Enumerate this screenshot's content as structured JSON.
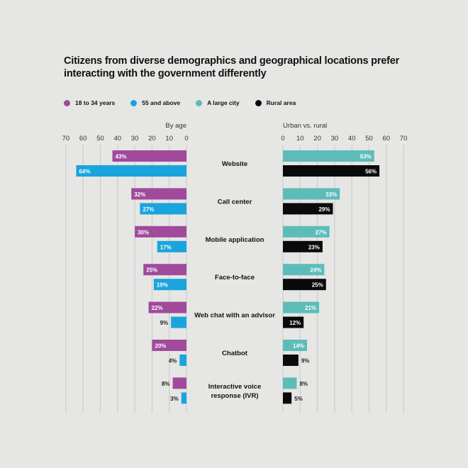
{
  "title": "Citizens from diverse demographics and geographical locations prefer interacting with the government differently",
  "colors": {
    "age_young": "#a04a9c",
    "age_old": "#1aa4dd",
    "city": "#5cbcb9",
    "rural": "#0a0a0a",
    "grid": "#c9c9c7"
  },
  "legend": [
    {
      "name": "18 to 34 years",
      "color": "#a04a9c"
    },
    {
      "name": "55 and above",
      "color": "#1aa4dd"
    },
    {
      "name": "A large city",
      "color": "#5cbcb9"
    },
    {
      "name": "Rural area",
      "color": "#0a0a0a"
    }
  ],
  "chart_data": [
    {
      "type": "bar",
      "orientation": "horizontal",
      "direction": "right-to-left",
      "title": "By age",
      "xlim": [
        0,
        70
      ],
      "ticks": [
        70,
        60,
        50,
        40,
        30,
        20,
        10,
        0
      ],
      "grid": true,
      "categories": [
        "Website",
        "Call center",
        "Mobile application",
        "Face-to-face",
        "Web chat with an advisor",
        "Chatbot",
        "Interactive voice response (IVR)"
      ],
      "series": [
        {
          "name": "18 to 34 years",
          "values": [
            43,
            32,
            30,
            25,
            22,
            20,
            8
          ]
        },
        {
          "name": "55 and above",
          "values": [
            64,
            27,
            17,
            19,
            9,
            4,
            3
          ]
        }
      ]
    },
    {
      "type": "bar",
      "orientation": "horizontal",
      "direction": "left-to-right",
      "title": "Urban vs. rural",
      "xlim": [
        0,
        70
      ],
      "ticks": [
        0,
        10,
        20,
        30,
        40,
        50,
        60,
        70
      ],
      "grid": true,
      "categories": [
        "Website",
        "Call center",
        "Mobile application",
        "Face-to-face",
        "Web chat with an advisor",
        "Chatbot",
        "Interactive voice response (IVR)"
      ],
      "series": [
        {
          "name": "A large city",
          "values": [
            53,
            33,
            27,
            24,
            21,
            14,
            8
          ]
        },
        {
          "name": "Rural area",
          "values": [
            56,
            29,
            23,
            25,
            12,
            9,
            5
          ]
        }
      ]
    }
  ]
}
